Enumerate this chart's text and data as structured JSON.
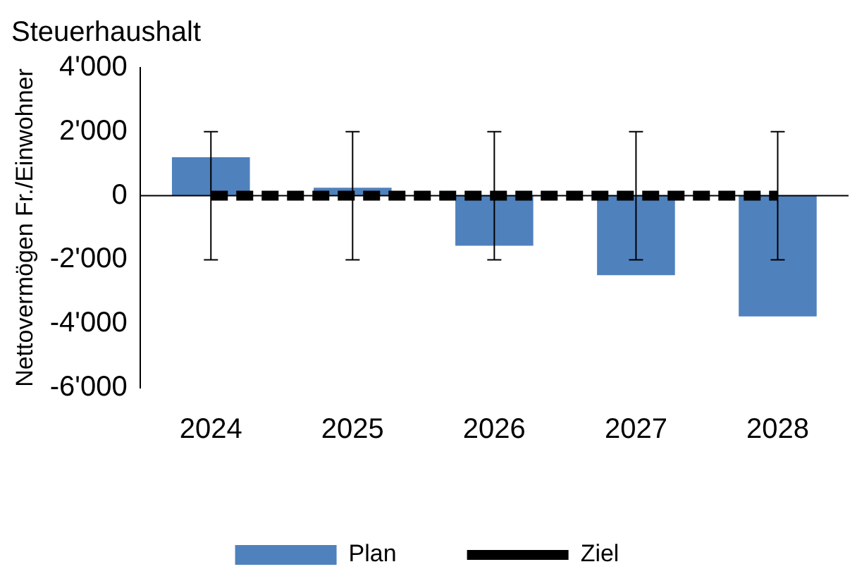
{
  "chart_data": {
    "type": "bar",
    "title": "Steuerhaushalt",
    "ylabel": "Nettovermögen Fr./Einwohner",
    "categories": [
      "2024",
      "2025",
      "2026",
      "2027",
      "2028"
    ],
    "series": [
      {
        "name": "Plan",
        "color": "#4f81bd",
        "values": [
          1200,
          250,
          -1560,
          -2480,
          -3770
        ]
      },
      {
        "name": "Ziel",
        "type": "line",
        "color": "#000000",
        "line_style": "dashed",
        "values": [
          0,
          0,
          0,
          0,
          0
        ],
        "errors": [
          2000,
          2000,
          2000,
          2000,
          2000
        ]
      }
    ],
    "ylim": [
      -6000,
      4000
    ],
    "yticks": [
      {
        "value": -6000,
        "label": "-6'000"
      },
      {
        "value": -4000,
        "label": "-4'000"
      },
      {
        "value": -2000,
        "label": "-2'000"
      },
      {
        "value": 0,
        "label": "0"
      },
      {
        "value": 2000,
        "label": "2'000"
      },
      {
        "value": 4000,
        "label": "4'000"
      }
    ],
    "grid": false,
    "legend": "bottom",
    "marker": "none"
  }
}
